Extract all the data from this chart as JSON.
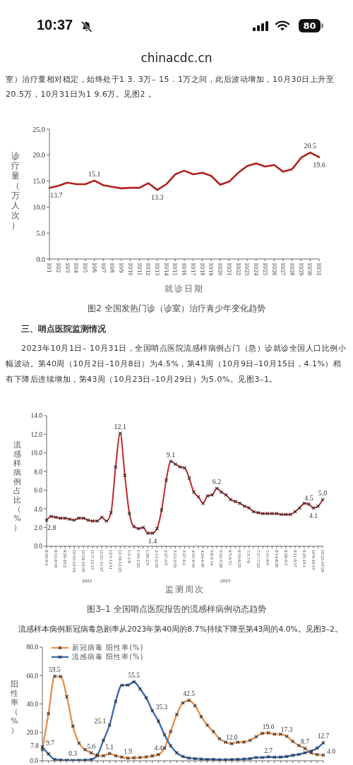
{
  "chart_data": [
    {
      "type": "other",
      "annotations": [
        "10:37",
        "80",
        "chinacdc.cn"
      ]
    },
    {
      "type": "line",
      "title": "图2 全国发热门诊（诊室）治疗青少年变化趋势",
      "xlabel": "就诊日期",
      "ylabel": "诊疗量（万人次）",
      "annotations": [
        "室）治疗量相对稳定，始终处于1 3. 3万– 15 . 1万之间，此后波动增加，10月30日上升至20.5万，10月31日为1 9.6万。见图2 。"
      ],
      "categories": [
        "10/1",
        "10/2",
        "10/3",
        "10/4",
        "10/5",
        "10/6",
        "10/7",
        "10/8",
        "10/9",
        "10/10",
        "10/11",
        "10/12",
        "10/13",
        "10/14",
        "10/15",
        "10/16",
        "10/17",
        "10/18",
        "10/19",
        "10/20",
        "10/21",
        "10/22",
        "10/23",
        "10/24",
        "10/25",
        "10/26",
        "10/27",
        "10/28",
        "10/29",
        "10/30",
        "10/31"
      ],
      "series": [
        {
          "color": "#b0201c",
          "values": [
            13.7,
            14.1,
            14.7,
            14.4,
            14.4,
            15.1,
            14.2,
            13.9,
            13.6,
            13.7,
            13.7,
            14.6,
            13.3,
            14.4,
            16.3,
            17.0,
            16.3,
            16.6,
            16.0,
            14.3,
            14.9,
            16.6,
            17.9,
            18.4,
            17.8,
            18.1,
            16.8,
            17.3,
            19.5,
            20.5,
            19.6
          ],
          "value_labels": [
            "13.7",
            null,
            null,
            null,
            null,
            "15.1",
            null,
            null,
            null,
            null,
            null,
            null,
            "13.3",
            null,
            null,
            null,
            null,
            null,
            null,
            null,
            null,
            null,
            null,
            null,
            null,
            null,
            null,
            null,
            null,
            "20.5",
            "19.6"
          ]
        }
      ],
      "ylim": [
        0,
        25
      ],
      "yticks": [
        {
          "value": 0,
          "label": "0.0"
        },
        {
          "value": 5,
          "label": "5.0"
        },
        {
          "value": 10,
          "label": "10.0"
        },
        {
          "value": 15,
          "label": "15.0"
        },
        {
          "value": 20,
          "label": "20.0"
        },
        {
          "value": 25,
          "label": "25.0"
        }
      ]
    },
    {
      "type": "line",
      "title": "图3–1 全国哨点医院报告的流感样病例动态趋势",
      "xlabel": "监测周次",
      "ylabel": "流感样病例占比（%）",
      "annotations": [
        "三、哨点医院监测情况",
        "2023年10月1日– 10月31日，全国哨点医院流感样病例占门（急）诊就诊全国人口比例小幅波动。第40周（10月2日–10月8日）为4.5%，第41周（10月9日–10月15日，4.1%）稍有下降后连续增加，第43周（10月23日–10月29日）为5.0%。见图3–1。",
        "2022",
        "2023"
      ],
      "categories": [
        "8/29-9/4",
        null,
        "9/12-9/18",
        null,
        "9/26-10/2",
        null,
        "10/10-10/16",
        null,
        "10/24-10/30",
        null,
        "11/7-11/13",
        null,
        "11/21-11/27",
        null,
        "12/5-12/11",
        null,
        "12/19-12/25",
        null,
        "1/2-1/8",
        null,
        "1/16-1/22",
        null,
        "1/30-2/5",
        null,
        "2/13-2/19",
        null,
        "2/27-3/5",
        null,
        "3/13-3/19",
        null,
        "3/27-4/2",
        null,
        "4/10-4/16",
        null,
        "4/24-4/30",
        null,
        "5/8-5/14",
        null,
        "5/22-5/28",
        null,
        "6/5-6/11",
        null,
        "6/19-6/25",
        null,
        "7/3-7/9",
        null,
        "7/17-7/23",
        null,
        "7/31-8/6",
        null,
        "8/14-8/20",
        null,
        "8/28-9/3",
        null,
        "9/11-9/17",
        null,
        "9/25-10/1",
        null,
        "10/9-10/15",
        null,
        "10/23-10/29"
      ],
      "series": [
        {
          "color": "#c3262b",
          "values": [
            2.8,
            3.2,
            3.1,
            3.0,
            3.0,
            2.9,
            2.8,
            3.0,
            3.0,
            2.8,
            2.7,
            2.7,
            3.1,
            2.7,
            3.6,
            8.5,
            12.1,
            7.6,
            3.5,
            2.1,
            1.9,
            2.0,
            1.4,
            1.4,
            1.9,
            3.9,
            7.1,
            9.1,
            8.8,
            8.5,
            8.4,
            7.3,
            5.8,
            5.3,
            4.6,
            5.4,
            5.5,
            6.2,
            5.8,
            5.5,
            5.0,
            4.8,
            4.6,
            4.3,
            4.1,
            3.7,
            3.6,
            3.5,
            3.5,
            3.5,
            3.5,
            3.4,
            3.4,
            3.4,
            3.7,
            4.1,
            4.6,
            4.5,
            4.1,
            4.3,
            5.0
          ],
          "value_labels": [
            "2.8",
            null,
            null,
            null,
            null,
            null,
            null,
            null,
            null,
            null,
            null,
            null,
            null,
            null,
            null,
            null,
            "12.1",
            null,
            null,
            null,
            null,
            null,
            null,
            "1.4",
            null,
            null,
            null,
            "9.1",
            null,
            null,
            null,
            null,
            null,
            null,
            null,
            null,
            null,
            "6.2",
            null,
            null,
            null,
            null,
            null,
            null,
            null,
            null,
            null,
            null,
            null,
            null,
            null,
            null,
            null,
            null,
            null,
            null,
            null,
            "4.5",
            "4.1",
            null,
            "5.0"
          ]
        }
      ],
      "ylim": [
        0,
        14
      ],
      "yticks": [
        {
          "value": 0,
          "label": "0.0"
        },
        {
          "value": 2,
          "label": "2.0"
        },
        {
          "value": 4,
          "label": "4.0"
        },
        {
          "value": 6,
          "label": "6.0"
        },
        {
          "value": 8,
          "label": "8.0"
        },
        {
          "value": 10,
          "label": "10.0"
        },
        {
          "value": 12,
          "label": "12.0"
        },
        {
          "value": 14,
          "label": "14.0"
        }
      ],
      "marker": "cross"
    },
    {
      "type": "line",
      "ylabel": "阳性率（%）",
      "annotations": [
        "流感样本病例新冠病毒急剧率从2023年第40周的8.7%持续下降至第43周的4.0%。见图3–2。"
      ],
      "categories": [
        null,
        null,
        null,
        null,
        null,
        null,
        null,
        null,
        null,
        null,
        null,
        null,
        null,
        null,
        null,
        null,
        null,
        null,
        null,
        null,
        null,
        null,
        null,
        null,
        null,
        null,
        null,
        null,
        null,
        null,
        null,
        null,
        null,
        null,
        null,
        null,
        null,
        null,
        null,
        null,
        null,
        null,
        null,
        null,
        null,
        null,
        null
      ],
      "series": [
        {
          "name": "新冠病毒 阳性率(%)",
          "color": "#e8914f",
          "values": [
            7.8,
            33.2,
            59.5,
            59.3,
            45.1,
            24.3,
            12.4,
            7.8,
            5.6,
            3.6,
            3.5,
            5.1,
            3.5,
            2.6,
            1.9,
            2.1,
            2.3,
            2.7,
            3.4,
            4.4,
            8.9,
            20.5,
            32.6,
            40.8,
            42.5,
            38.8,
            31.1,
            25.1,
            20.5,
            15.5,
            13.1,
            12.0,
            13.1,
            13.2,
            14.4,
            16.9,
            19.3,
            19.6,
            18.7,
            18.7,
            17.3,
            13.6,
            10.7,
            8.7,
            5.6,
            4.3,
            4.0
          ],
          "value_labels": [
            "7.8",
            null,
            "59.5",
            null,
            null,
            null,
            null,
            null,
            "5.6",
            null,
            null,
            "5.1",
            null,
            null,
            "1.9",
            null,
            null,
            null,
            null,
            "4.4",
            null,
            null,
            null,
            null,
            "42.5",
            null,
            null,
            null,
            null,
            null,
            null,
            "12.0",
            null,
            null,
            null,
            null,
            null,
            "19.6",
            null,
            null,
            "17.3",
            null,
            null,
            "8.7",
            null,
            null,
            "4.0"
          ]
        },
        {
          "name": "流感病毒 阳性率(%)",
          "color": "#3c6db4",
          "values": [
            9.7,
            4.8,
            1.0,
            0.5,
            0.4,
            0.3,
            0.4,
            0.5,
            0.9,
            4.0,
            14.4,
            25.1,
            41.7,
            53.2,
            53.3,
            55.5,
            50.6,
            44.3,
            35.3,
            27.9,
            18.3,
            10.6,
            5.6,
            3.0,
            1.9,
            1.5,
            1.2,
            1.0,
            1.0,
            0.8,
            0.8,
            0.9,
            1.0,
            1.2,
            1.5,
            2.3,
            2.3,
            2.7,
            2.5,
            2.6,
            3.0,
            3.8,
            4.5,
            5.6,
            6.8,
            8.9,
            12.7
          ],
          "value_labels": [
            "9.7",
            null,
            null,
            null,
            null,
            "0.3",
            null,
            null,
            null,
            null,
            null,
            "25.1",
            null,
            null,
            null,
            "55.5",
            null,
            null,
            "35.3",
            null,
            null,
            null,
            null,
            null,
            null,
            null,
            null,
            null,
            null,
            null,
            null,
            null,
            null,
            null,
            null,
            null,
            null,
            "2.7",
            null,
            null,
            null,
            null,
            null,
            null,
            null,
            null,
            "12.7"
          ]
        }
      ],
      "ylim": [
        0,
        80
      ],
      "yticks": [
        {
          "value": 0,
          "label": "0.0"
        },
        {
          "value": 20,
          "label": "20.0"
        },
        {
          "value": 40,
          "label": "40.0"
        },
        {
          "value": 60,
          "label": "60.0"
        },
        {
          "value": 80,
          "label": "80.0"
        }
      ],
      "marker": "cross",
      "legend": "top left",
      "tick_labels": "y"
    }
  ]
}
